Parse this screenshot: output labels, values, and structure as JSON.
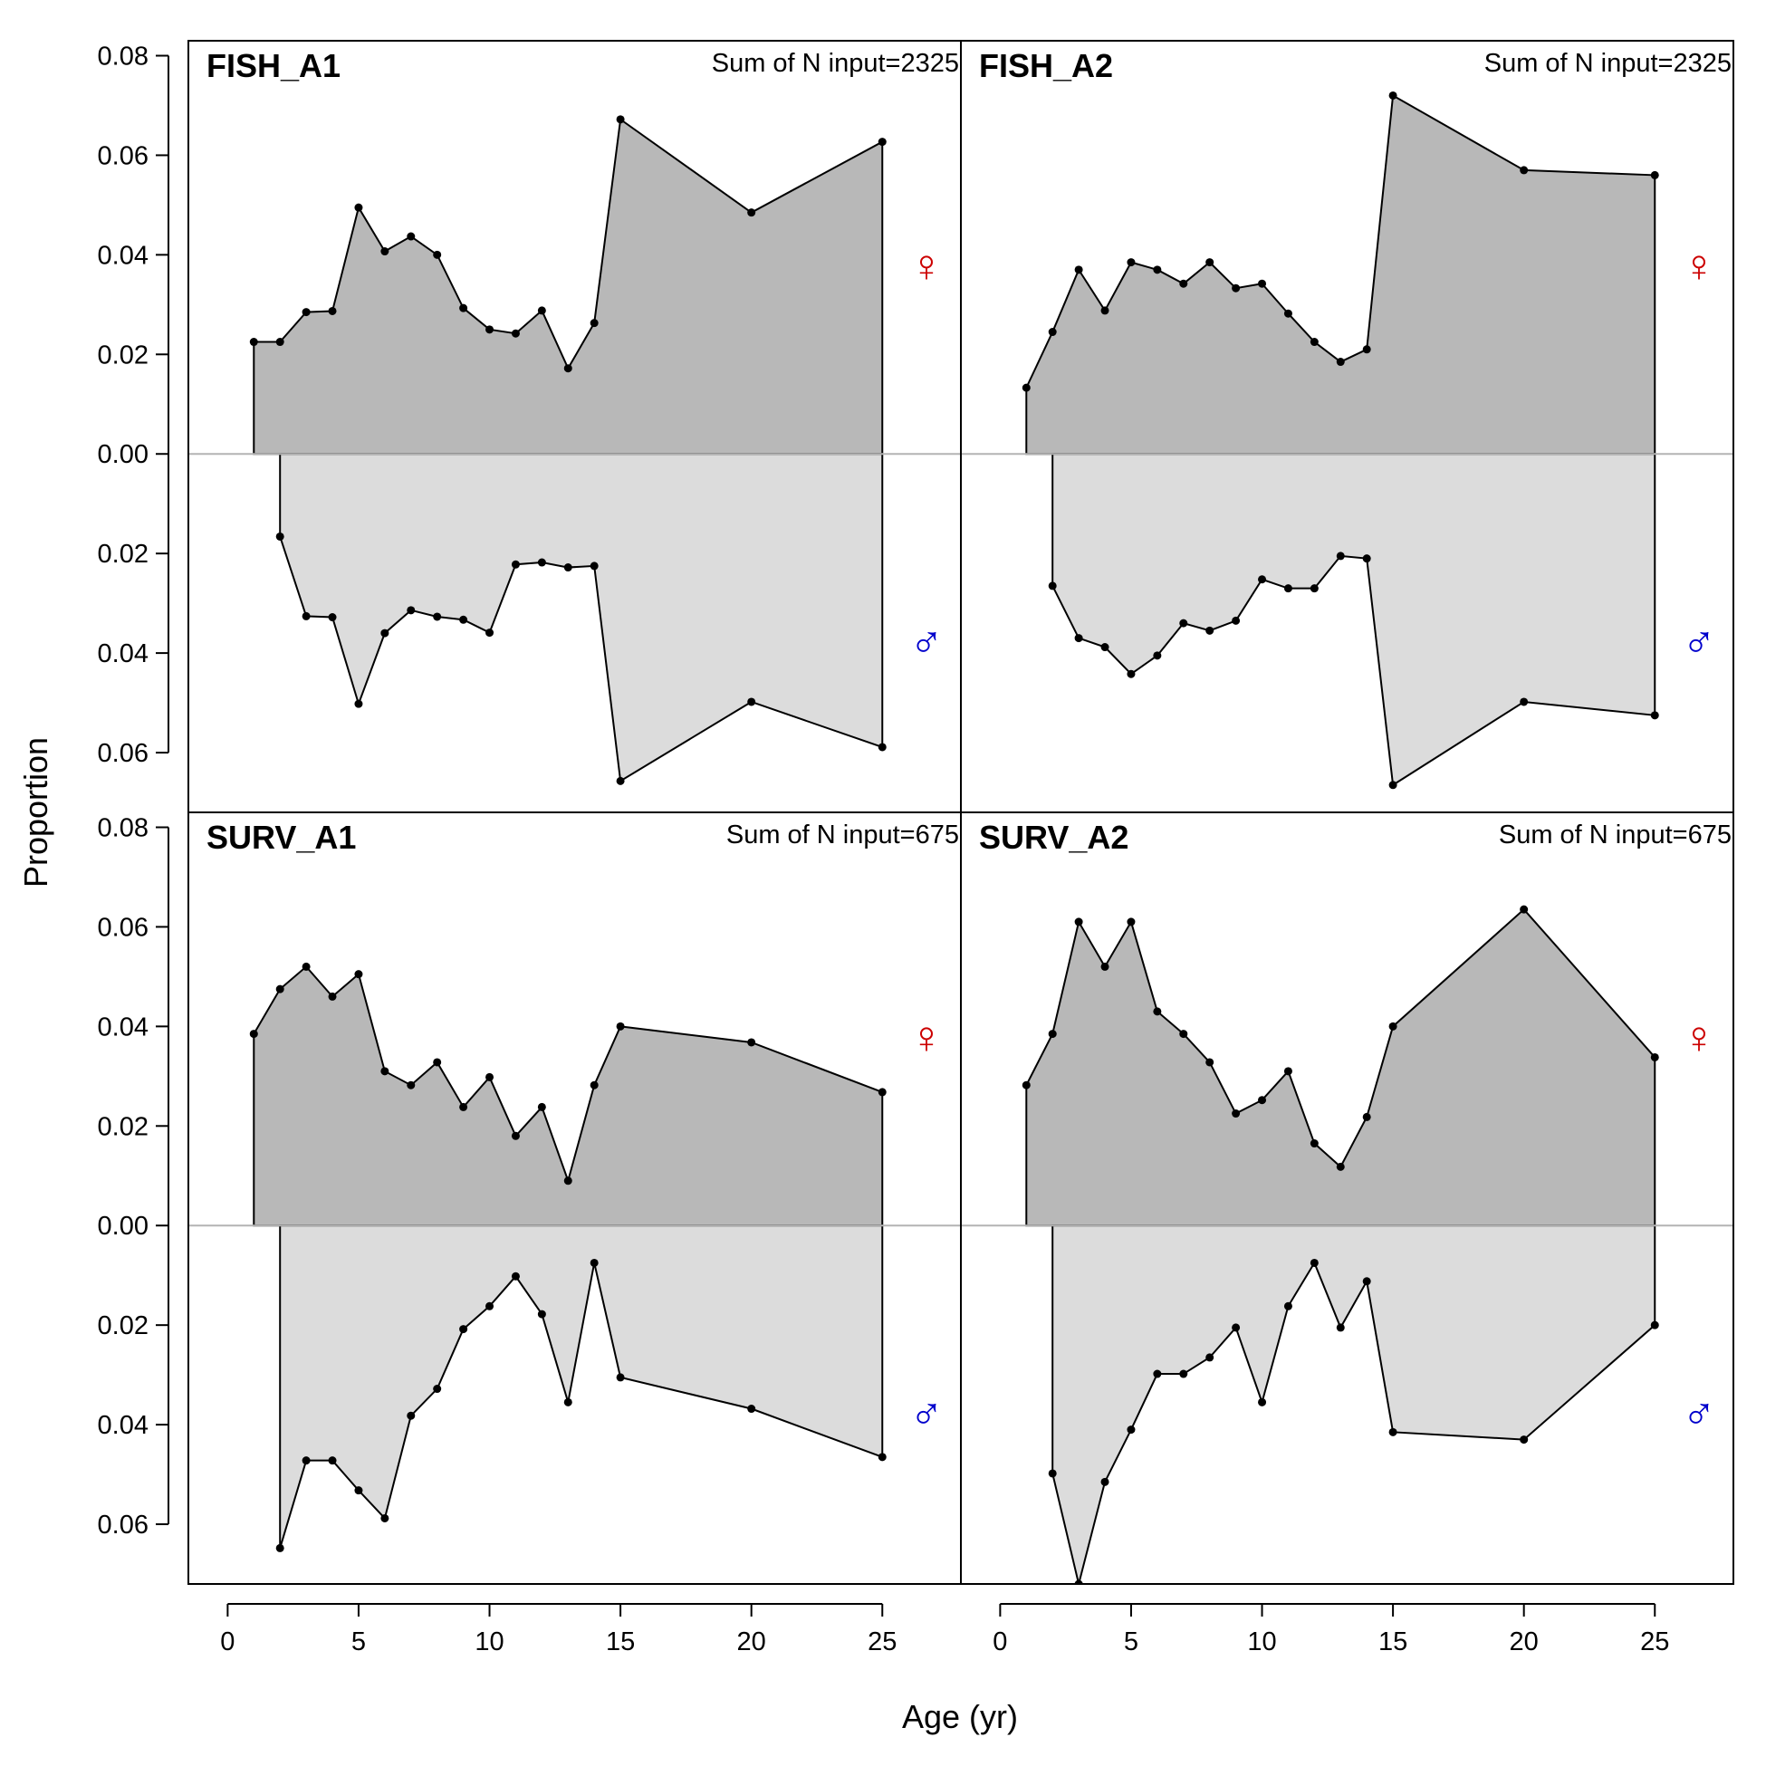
{
  "chart_data": {
    "type": "area",
    "title": "",
    "xlabel": "Age (yr)",
    "ylabel": "Proportion",
    "xlim": [
      -1.5,
      28
    ],
    "ylim": [
      -0.072,
      0.083
    ],
    "x_ticks": [
      0,
      5,
      10,
      15,
      20,
      25
    ],
    "y_ticks": [
      0.08,
      0.06,
      0.04,
      0.02,
      0.0,
      -0.02,
      -0.04,
      -0.06
    ],
    "y_tick_labels": [
      "0.08",
      "0.06",
      "0.04",
      "0.02",
      "0.00",
      "0.02",
      "0.04",
      "0.06"
    ],
    "legend": {
      "female_symbol": "♀",
      "male_symbol": "♂",
      "female_color": "#cc0000",
      "male_color": "#0000cc"
    },
    "colors": {
      "female_fill": "#b8b8b8",
      "male_fill": "#dcdcdc",
      "zero_line": "#b4b4b4",
      "line": "#000000"
    },
    "panels": [
      {
        "title": "FISH_A1",
        "note": "Sum of N input=2325",
        "female": {
          "x": [
            1,
            2,
            3,
            4,
            5,
            6,
            7,
            8,
            9,
            10,
            11,
            12,
            13,
            14,
            15,
            20,
            25
          ],
          "values": [
            0.0225,
            0.0225,
            0.0285,
            0.0287,
            0.0495,
            0.0407,
            0.0437,
            0.04,
            0.0293,
            0.025,
            0.0242,
            0.0288,
            0.0172,
            0.0263,
            0.0672,
            0.0485,
            0.0627
          ]
        },
        "male": {
          "x": [
            2,
            3,
            4,
            5,
            6,
            7,
            8,
            9,
            10,
            11,
            12,
            13,
            14,
            15,
            20,
            25
          ],
          "values": [
            0.0166,
            0.0326,
            0.0328,
            0.0502,
            0.036,
            0.0314,
            0.0327,
            0.0333,
            0.0359,
            0.0222,
            0.0218,
            0.0228,
            0.0225,
            0.0657,
            0.0498,
            0.0589
          ]
        }
      },
      {
        "title": "FISH_A2",
        "note": "Sum of N input=2325",
        "female": {
          "x": [
            1,
            2,
            3,
            4,
            5,
            6,
            7,
            8,
            9,
            10,
            11,
            12,
            13,
            14,
            15,
            20,
            25
          ],
          "values": [
            0.0133,
            0.0245,
            0.037,
            0.0288,
            0.0385,
            0.037,
            0.0342,
            0.0385,
            0.0333,
            0.0342,
            0.0282,
            0.0225,
            0.0185,
            0.021,
            0.072,
            0.057,
            0.056
          ]
        },
        "male": {
          "x": [
            2,
            3,
            4,
            5,
            6,
            7,
            8,
            9,
            10,
            11,
            12,
            13,
            14,
            15,
            20,
            25
          ],
          "values": [
            0.0265,
            0.037,
            0.0388,
            0.0442,
            0.0405,
            0.034,
            0.0355,
            0.0335,
            0.0252,
            0.027,
            0.027,
            0.0205,
            0.021,
            0.0665,
            0.0498,
            0.0525
          ]
        }
      },
      {
        "title": "SURV_A1",
        "note": "Sum of N input=675",
        "female": {
          "x": [
            1,
            2,
            3,
            4,
            5,
            6,
            7,
            8,
            9,
            10,
            11,
            12,
            13,
            14,
            15,
            20,
            25
          ],
          "values": [
            0.0385,
            0.0475,
            0.052,
            0.046,
            0.0505,
            0.031,
            0.0282,
            0.0328,
            0.0238,
            0.0298,
            0.018,
            0.0238,
            0.009,
            0.0282,
            0.04,
            0.0368,
            0.0268
          ]
        },
        "male": {
          "x": [
            2,
            3,
            4,
            5,
            6,
            7,
            8,
            9,
            10,
            11,
            12,
            13,
            14,
            15,
            20,
            25
          ],
          "values": [
            0.0648,
            0.0472,
            0.0472,
            0.0532,
            0.0588,
            0.0382,
            0.0328,
            0.0208,
            0.0162,
            0.0102,
            0.0178,
            0.0355,
            0.0075,
            0.0305,
            0.0368,
            0.0465
          ]
        }
      },
      {
        "title": "SURV_A2",
        "note": "Sum of N input=675",
        "female": {
          "x": [
            1,
            2,
            3,
            4,
            5,
            6,
            7,
            8,
            9,
            10,
            11,
            12,
            13,
            14,
            15,
            20,
            25
          ],
          "values": [
            0.0282,
            0.0385,
            0.061,
            0.052,
            0.061,
            0.043,
            0.0385,
            0.0328,
            0.0225,
            0.0252,
            0.031,
            0.0165,
            0.0118,
            0.0218,
            0.04,
            0.0635,
            0.0338
          ]
        },
        "male": {
          "x": [
            2,
            3,
            4,
            5,
            6,
            7,
            8,
            9,
            10,
            11,
            12,
            13,
            14,
            15,
            20,
            25
          ],
          "values": [
            0.0498,
            0.072,
            0.0515,
            0.041,
            0.0298,
            0.0298,
            0.0265,
            0.0205,
            0.0355,
            0.0162,
            0.0075,
            0.0205,
            0.0112,
            0.0415,
            0.043,
            0.02
          ]
        }
      }
    ]
  }
}
